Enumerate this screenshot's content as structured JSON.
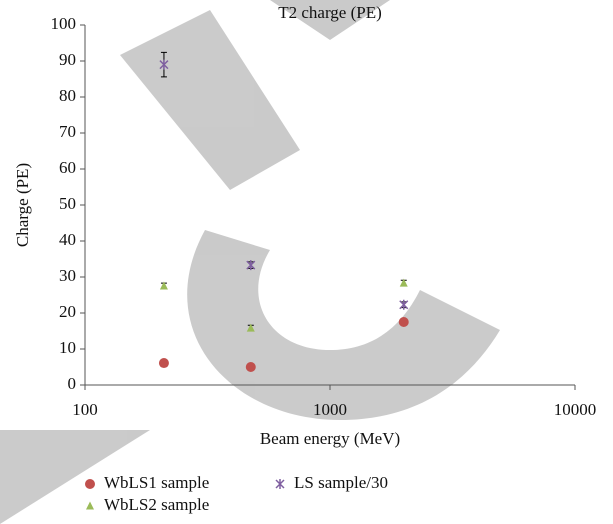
{
  "chart_data": {
    "type": "scatter",
    "title": "T2 charge (PE)",
    "x_label": "Beam energy (MeV)",
    "y_label": "Charge (PE)",
    "x": [
      210,
      475,
      2000
    ],
    "series": [
      {
        "name": "WbLS1 sample",
        "color": "#c0504d",
        "marker": "circle",
        "values": [
          6.1,
          5,
          17.5
        ]
      },
      {
        "name": "WbLS2 sample",
        "color": "#9bbb59",
        "marker": "triangle",
        "values": [
          27.5,
          15.8,
          28.3
        ],
        "errors": [
          0.8,
          0.8,
          0.8
        ]
      },
      {
        "name": "LS sample/30",
        "color": "#7f5fa0",
        "marker": "star",
        "values": [
          89,
          33.3,
          22.3
        ],
        "errors": [
          3.4,
          0.9,
          0.8
        ]
      }
    ],
    "xscale": "log",
    "xlim": [
      100,
      10000
    ],
    "xticks": [
      100,
      1000,
      10000
    ],
    "ylim": [
      0,
      100
    ],
    "yticks": [
      0,
      10,
      20,
      30,
      40,
      50,
      60,
      70,
      80,
      90,
      100
    ],
    "legend": "bottom"
  }
}
